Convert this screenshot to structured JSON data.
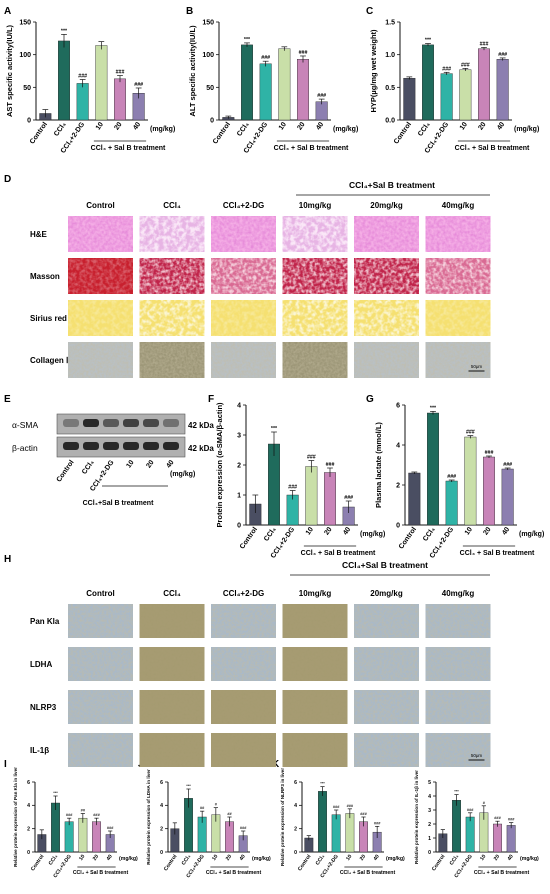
{
  "panels": {
    "A": {
      "letter": "A",
      "ylabel": "AST specific activity(IU/L)",
      "xunit": "(mg/kg)",
      "group_label": "CCl₄ + Sal B treatment",
      "yticks": [
        "0",
        "50",
        "100",
        "150"
      ]
    },
    "B": {
      "letter": "B",
      "ylabel": "ALT specific activity(IU/L)",
      "xunit": "(mg/kg)",
      "group_label": "CCl₄ + Sal B treatment",
      "yticks": [
        "0",
        "50",
        "100",
        "150"
      ]
    },
    "C": {
      "letter": "C",
      "ylabel": "HYP(µg/mg wet weight)",
      "xunit": "(mg/kg)",
      "group_label": "CCl₄ + Sal B treatment",
      "yticks": [
        "0.0",
        "0.5",
        "1.0",
        "1.5"
      ]
    },
    "D": {
      "letter": "D",
      "treatment_header": "CCl₄+Sal B treatment",
      "columns": [
        "Control",
        "CCl₄",
        "CCl₄+2-DG",
        "10mg/kg",
        "20mg/kg",
        "40mg/kg"
      ],
      "rows": [
        "H&E",
        "Masson",
        "Sirius red",
        "Collagen Ⅰ"
      ],
      "scale": "50μm"
    },
    "E": {
      "letter": "E",
      "bands": [
        "α-SMA",
        "β-actin"
      ],
      "kda": [
        "42 kDa",
        "42 kDa"
      ],
      "lanes": [
        "Control",
        "CCl₄",
        "CCl₄+2-DG",
        "10",
        "20",
        "40"
      ],
      "unit": "(mg/kg)",
      "group_label": "CCl₄+Sal B treatment"
    },
    "F": {
      "letter": "F",
      "ylabel": "Protein expression (α-SMA/β-actin)",
      "xunit": "(mg/kg)",
      "group_label": "CCl₄ + Sal B treatment",
      "yticks": [
        "0",
        "1",
        "2",
        "3",
        "4"
      ]
    },
    "G": {
      "letter": "G",
      "ylabel": "Plasma lactate (mmol/L)",
      "xunit": "(mg/kg)",
      "group_label": "CCl₄ + Sal B treatment",
      "yticks": [
        "0",
        "2",
        "4",
        "6"
      ]
    },
    "H": {
      "letter": "H",
      "treatment_header": "CCl₄+Sal B treatment",
      "columns": [
        "Control",
        "CCl₄",
        "CCl₄+2-DG",
        "10mg/kg",
        "20mg/kg",
        "40mg/kg"
      ],
      "rows": [
        "Pan Kla",
        "LDHA",
        "NLRP3",
        "IL-1β"
      ],
      "scale": "50μm"
    },
    "I": {
      "letter": "I",
      "ylabel": "Relative protein expression of Pan Kla in liver"
    },
    "J": {
      "letter": "J",
      "ylabel": "Relative protein expression of LDHA in liver"
    },
    "K": {
      "letter": "K",
      "ylabel": "Relative protein expression of NLRP3 in liver"
    },
    "L": {
      "letter": "L",
      "ylabel": "Relative protein expression of IL-1β in liver"
    }
  },
  "group_labels": [
    "Control",
    "CCl₄",
    "CCl₄+2-DG",
    "10",
    "20",
    "40"
  ],
  "small_group_label": "CCl₄ + Sal B treatment",
  "small_unit": "(mg/kg)",
  "bar_colors": [
    "#4a4e62",
    "#1f6b5c",
    "#2fb3a6",
    "#c9dfa8",
    "#c884b8",
    "#8c7fb0"
  ],
  "chart_data": [
    {
      "panel": "A",
      "type": "bar",
      "categories": [
        "Control",
        "CCl₄",
        "CCl₄+2-DG",
        "10",
        "20",
        "40"
      ],
      "values": [
        10,
        121,
        56,
        114,
        63,
        41
      ],
      "errors": [
        6,
        10,
        6,
        6,
        5,
        8
      ],
      "annotations": [
        "",
        "***",
        "###",
        "",
        "###",
        "###"
      ],
      "ylim": [
        0,
        150
      ],
      "yticks": [
        0,
        50,
        100,
        150
      ],
      "ylabel": "AST specific activity(IU/L)"
    },
    {
      "panel": "B",
      "type": "bar",
      "categories": [
        "Control",
        "CCl₄",
        "CCl₄+2-DG",
        "10",
        "20",
        "40"
      ],
      "values": [
        4,
        115,
        86,
        109,
        93,
        28
      ],
      "errors": [
        2,
        3,
        4,
        3,
        5,
        4
      ],
      "annotations": [
        "",
        "***",
        "###",
        "",
        "###",
        "###"
      ],
      "ylim": [
        0,
        150
      ],
      "yticks": [
        0,
        50,
        100,
        150
      ],
      "ylabel": "ALT specific activity(IU/L)"
    },
    {
      "panel": "C",
      "type": "bar",
      "categories": [
        "Control",
        "CCl₄",
        "CCl₄+2-DG",
        "10",
        "20",
        "40"
      ],
      "values": [
        0.64,
        1.15,
        0.71,
        0.77,
        1.09,
        0.93
      ],
      "errors": [
        0.02,
        0.02,
        0.02,
        0.02,
        0.02,
        0.02
      ],
      "annotations": [
        "",
        "***",
        "###",
        "###",
        "###",
        "###"
      ],
      "ylim": [
        0,
        1.5
      ],
      "yticks": [
        0,
        0.5,
        1.0,
        1.5
      ],
      "ylabel": "HYP(µg/mg wet weight)"
    },
    {
      "panel": "F",
      "type": "bar",
      "categories": [
        "Control",
        "CCl₄",
        "CCl₄+2-DG",
        "10",
        "20",
        "40"
      ],
      "values": [
        0.7,
        2.7,
        1.0,
        1.95,
        1.75,
        0.6
      ],
      "errors": [
        0.3,
        0.4,
        0.15,
        0.2,
        0.15,
        0.2
      ],
      "annotations": [
        "",
        "***",
        "###",
        "###",
        "###",
        "###"
      ],
      "ylim": [
        0,
        4
      ],
      "yticks": [
        0,
        1,
        2,
        3,
        4
      ],
      "ylabel": "Protein expression (α-SMA/β-actin)"
    },
    {
      "panel": "G",
      "type": "bar",
      "categories": [
        "Control",
        "CCl₄",
        "CCl₄+2-DG",
        "10",
        "20",
        "40"
      ],
      "values": [
        2.6,
        5.6,
        2.2,
        4.4,
        3.4,
        2.8
      ],
      "errors": [
        0.05,
        0.08,
        0.05,
        0.07,
        0.05,
        0.05
      ],
      "annotations": [
        "",
        "***",
        "###",
        "###",
        "###",
        "###"
      ],
      "ylim": [
        0,
        6
      ],
      "yticks": [
        0,
        2,
        4,
        6
      ],
      "ylabel": "Plasma lactate (mmol/L)"
    },
    {
      "panel": "I",
      "type": "bar",
      "categories": [
        "Control",
        "CCl₄",
        "CCl₄+2-DG",
        "10",
        "20",
        "40"
      ],
      "values": [
        1.5,
        4.2,
        2.6,
        2.9,
        2.6,
        1.5
      ],
      "errors": [
        0.4,
        0.6,
        0.3,
        0.4,
        0.3,
        0.3
      ],
      "annotations": [
        "",
        "***",
        "###",
        "##",
        "###",
        "###"
      ],
      "ylim": [
        0,
        6
      ],
      "yticks": [
        0,
        2,
        4,
        6
      ],
      "ylabel": "Relative protein expression of Pan Kla in liver"
    },
    {
      "panel": "J",
      "type": "bar",
      "categories": [
        "Control",
        "CCl₄",
        "CCl₄+2-DG",
        "10",
        "20",
        "40"
      ],
      "values": [
        2.0,
        4.6,
        3.0,
        3.2,
        2.6,
        1.4
      ],
      "errors": [
        0.5,
        0.8,
        0.5,
        0.6,
        0.4,
        0.4
      ],
      "annotations": [
        "",
        "***",
        "##",
        "#",
        "##",
        "###"
      ],
      "ylim": [
        0,
        6
      ],
      "yticks": [
        0,
        2,
        4,
        6
      ],
      "ylabel": "Relative protein expression of LDHA in liver"
    },
    {
      "panel": "K",
      "type": "bar",
      "categories": [
        "Control",
        "CCl₄",
        "CCl₄+2-DG",
        "10",
        "20",
        "40"
      ],
      "values": [
        1.2,
        5.2,
        3.2,
        3.3,
        2.6,
        1.7
      ],
      "errors": [
        0.2,
        0.4,
        0.4,
        0.4,
        0.4,
        0.5
      ],
      "annotations": [
        "",
        "***",
        "###",
        "###",
        "###",
        "###"
      ],
      "ylim": [
        0,
        6
      ],
      "yticks": [
        0,
        2,
        4,
        6
      ],
      "ylabel": "Relative protein expression of NLRP3 in liver"
    },
    {
      "panel": "L",
      "type": "bar",
      "categories": [
        "Control",
        "CCl₄",
        "CCl₄+2-DG",
        "10",
        "20",
        "40"
      ],
      "values": [
        1.3,
        3.7,
        2.5,
        2.8,
        2.0,
        1.9
      ],
      "errors": [
        0.3,
        0.4,
        0.3,
        0.5,
        0.2,
        0.2
      ],
      "annotations": [
        "",
        "***",
        "###",
        "#",
        "###",
        "###"
      ],
      "ylim": [
        0,
        5
      ],
      "yticks": [
        0,
        1,
        2,
        3,
        4,
        5
      ],
      "ylabel": "Relative protein expression of IL-1β in liver"
    }
  ]
}
